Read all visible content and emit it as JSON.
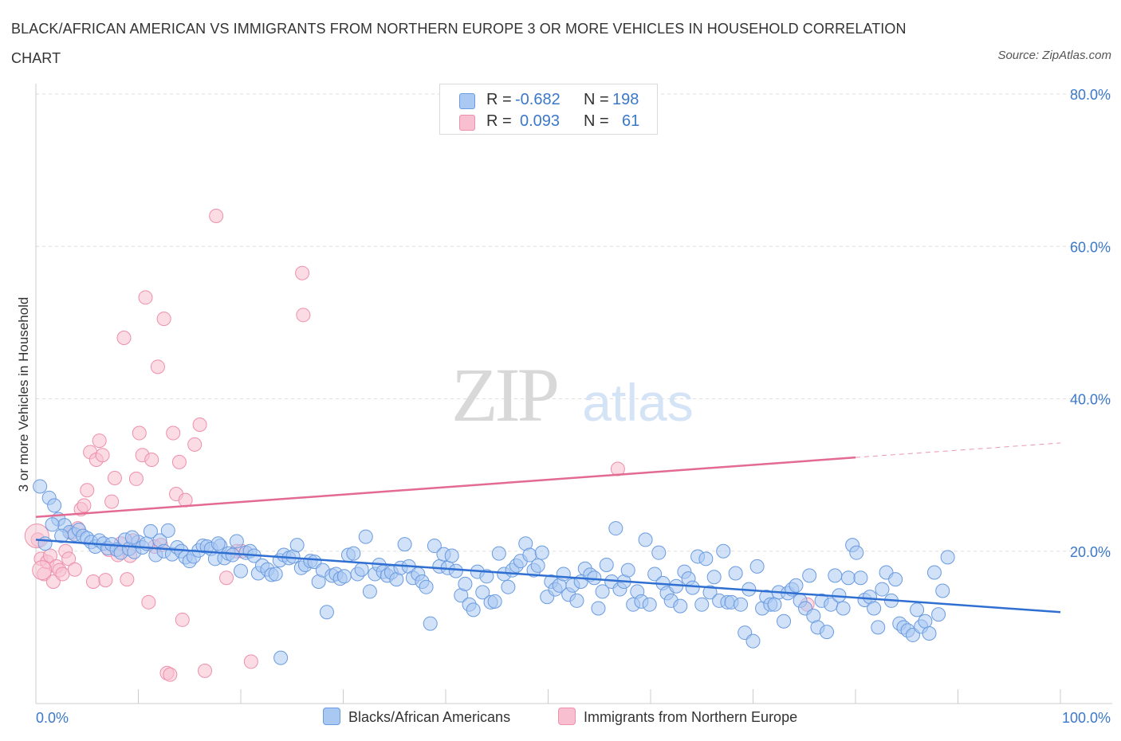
{
  "title": "BLACK/AFRICAN AMERICAN VS IMMIGRANTS FROM NORTHERN EUROPE 3 OR MORE VEHICLES IN HOUSEHOLD CORRELATION CHART",
  "source": "Source: ZipAtlas.com",
  "watermark": {
    "zip": "ZIP",
    "atlas": "atlas"
  },
  "legend": {
    "rows": [
      {
        "r_label": "R =",
        "r_value": "-0.682",
        "n_label": "N =",
        "n_value": "198",
        "color": "#a9c8f2"
      },
      {
        "r_label": "R =",
        "r_value": "0.093",
        "n_label": "N =",
        "n_value": "61",
        "color": "#f7bfcf"
      }
    ]
  },
  "bottom_legend": {
    "blue": "Blacks/African Americans",
    "pink": "Immigrants from Northern Europe"
  },
  "colors": {
    "blue_fill": "#a9c8f2",
    "blue_stroke": "#6a9be0",
    "blue_line": "#2f6fd1",
    "pink_fill": "#f7bfcf",
    "pink_stroke": "#ee8fab",
    "pink_line": "#e36a92",
    "axis_text": "#3b78c9"
  },
  "chart_data": {
    "type": "scatter",
    "title": "BLACK/AFRICAN AMERICAN VS IMMIGRANTS FROM NORTHERN EUROPE 3 OR MORE VEHICLES IN HOUSEHOLD CORRELATION CHART",
    "xlabel": "",
    "ylabel": "3 or more Vehicles in Household",
    "xlim": [
      0,
      100
    ],
    "ylim": [
      0,
      80
    ],
    "x_tick_labels": [
      "0.0%",
      "100.0%"
    ],
    "y_ticks": [
      20,
      40,
      60,
      80
    ],
    "y_tick_labels": [
      "20.0%",
      "40.0%",
      "60.0%",
      "80.0%"
    ],
    "grid": true,
    "legend_position": "top-center",
    "series": [
      {
        "name": "Blacks/African Americans",
        "r": -0.682,
        "n": 198,
        "trend": {
          "x": [
            0,
            100
          ],
          "y": [
            21.5,
            12.0
          ]
        },
        "points": [
          [
            0.4,
            28.5
          ],
          [
            1.3,
            27.0
          ],
          [
            1.8,
            26.0
          ],
          [
            2.2,
            24.2
          ],
          [
            2.8,
            23.4
          ],
          [
            3.3,
            22.5
          ],
          [
            3.8,
            22.2
          ],
          [
            4.2,
            22.8
          ],
          [
            4.6,
            22.0
          ],
          [
            5.0,
            21.7
          ],
          [
            5.4,
            21.2
          ],
          [
            5.8,
            20.6
          ],
          [
            6.2,
            21.4
          ],
          [
            6.6,
            21.0
          ],
          [
            7.0,
            20.4
          ],
          [
            7.4,
            20.9
          ],
          [
            7.9,
            20.2
          ],
          [
            8.3,
            19.8
          ],
          [
            8.7,
            21.5
          ],
          [
            9.1,
            20.3
          ],
          [
            9.6,
            19.9
          ],
          [
            10.0,
            21.2
          ],
          [
            10.4,
            20.5
          ],
          [
            10.8,
            21.0
          ],
          [
            11.2,
            22.6
          ],
          [
            11.7,
            19.5
          ],
          [
            12.1,
            21.4
          ],
          [
            12.5,
            20.0
          ],
          [
            12.9,
            22.7
          ],
          [
            13.3,
            19.6
          ],
          [
            13.8,
            20.5
          ],
          [
            14.2,
            20.0
          ],
          [
            14.6,
            19.2
          ],
          [
            15.0,
            18.7
          ],
          [
            15.4,
            19.3
          ],
          [
            15.9,
            20.1
          ],
          [
            16.3,
            20.7
          ],
          [
            16.7,
            20.6
          ],
          [
            17.1,
            20.3
          ],
          [
            17.5,
            19.0
          ],
          [
            18.0,
            20.7
          ],
          [
            18.4,
            19.1
          ],
          [
            18.8,
            19.7
          ],
          [
            19.2,
            19.5
          ],
          [
            19.6,
            21.3
          ],
          [
            20.0,
            17.4
          ],
          [
            20.5,
            19.8
          ],
          [
            20.9,
            20.0
          ],
          [
            21.3,
            19.4
          ],
          [
            21.7,
            17.1
          ],
          [
            22.1,
            18.1
          ],
          [
            22.6,
            17.6
          ],
          [
            23.0,
            16.9
          ],
          [
            23.4,
            17.0
          ],
          [
            23.8,
            18.8
          ],
          [
            24.2,
            19.5
          ],
          [
            24.7,
            19.1
          ],
          [
            25.1,
            19.3
          ],
          [
            25.5,
            20.8
          ],
          [
            25.9,
            17.8
          ],
          [
            26.3,
            18.2
          ],
          [
            26.8,
            18.7
          ],
          [
            27.2,
            18.6
          ],
          [
            27.6,
            16.0
          ],
          [
            28.0,
            17.5
          ],
          [
            28.4,
            12.0
          ],
          [
            28.9,
            16.8
          ],
          [
            29.3,
            17.0
          ],
          [
            29.7,
            16.4
          ],
          [
            30.1,
            16.7
          ],
          [
            30.5,
            19.5
          ],
          [
            31.0,
            19.7
          ],
          [
            31.4,
            17.0
          ],
          [
            31.8,
            17.6
          ],
          [
            32.2,
            21.9
          ],
          [
            32.6,
            14.7
          ],
          [
            33.1,
            17.0
          ],
          [
            33.5,
            18.2
          ],
          [
            33.9,
            17.3
          ],
          [
            34.3,
            16.8
          ],
          [
            34.7,
            17.2
          ],
          [
            35.2,
            16.3
          ],
          [
            35.6,
            17.8
          ],
          [
            36.0,
            20.9
          ],
          [
            36.4,
            18.0
          ],
          [
            36.8,
            16.5
          ],
          [
            37.3,
            17.0
          ],
          [
            37.7,
            16.0
          ],
          [
            38.1,
            15.3
          ],
          [
            38.5,
            10.5
          ],
          [
            38.9,
            20.7
          ],
          [
            39.4,
            18.0
          ],
          [
            39.8,
            19.6
          ],
          [
            40.2,
            17.8
          ],
          [
            40.6,
            19.4
          ],
          [
            41.0,
            17.4
          ],
          [
            41.5,
            14.2
          ],
          [
            41.9,
            15.7
          ],
          [
            42.3,
            13.0
          ],
          [
            42.7,
            12.3
          ],
          [
            43.1,
            17.3
          ],
          [
            43.6,
            14.6
          ],
          [
            44.0,
            16.7
          ],
          [
            44.4,
            13.3
          ],
          [
            44.8,
            13.4
          ],
          [
            45.2,
            19.7
          ],
          [
            45.7,
            17.0
          ],
          [
            46.1,
            15.3
          ],
          [
            46.5,
            17.5
          ],
          [
            46.9,
            18.1
          ],
          [
            47.3,
            18.7
          ],
          [
            47.8,
            21.0
          ],
          [
            48.2,
            19.5
          ],
          [
            48.6,
            17.5
          ],
          [
            49.0,
            18.1
          ],
          [
            49.4,
            19.8
          ],
          [
            49.9,
            14.0
          ],
          [
            50.3,
            16.0
          ],
          [
            50.7,
            15.0
          ],
          [
            51.1,
            15.5
          ],
          [
            51.5,
            17.0
          ],
          [
            52.0,
            14.3
          ],
          [
            52.4,
            15.5
          ],
          [
            52.8,
            13.5
          ],
          [
            53.2,
            16.0
          ],
          [
            53.6,
            17.7
          ],
          [
            54.1,
            16.9
          ],
          [
            54.5,
            16.5
          ],
          [
            54.9,
            12.5
          ],
          [
            55.3,
            14.7
          ],
          [
            55.7,
            18.2
          ],
          [
            56.2,
            16.0
          ],
          [
            56.6,
            23.0
          ],
          [
            57.0,
            15.0
          ],
          [
            57.4,
            16.0
          ],
          [
            57.8,
            17.5
          ],
          [
            58.3,
            13.0
          ],
          [
            58.7,
            14.7
          ],
          [
            59.1,
            13.4
          ],
          [
            59.5,
            21.5
          ],
          [
            59.9,
            13.0
          ],
          [
            60.4,
            17.0
          ],
          [
            60.8,
            19.8
          ],
          [
            61.2,
            15.8
          ],
          [
            61.6,
            14.5
          ],
          [
            62.0,
            13.5
          ],
          [
            62.5,
            15.4
          ],
          [
            62.9,
            12.8
          ],
          [
            63.3,
            17.3
          ],
          [
            63.7,
            16.4
          ],
          [
            64.1,
            15.2
          ],
          [
            64.6,
            19.3
          ],
          [
            65.0,
            13.0
          ],
          [
            65.4,
            19.0
          ],
          [
            65.8,
            14.6
          ],
          [
            66.2,
            16.6
          ],
          [
            66.7,
            13.5
          ],
          [
            67.1,
            20.0
          ],
          [
            67.5,
            13.3
          ],
          [
            67.9,
            13.3
          ],
          [
            68.3,
            17.1
          ],
          [
            68.8,
            13.0
          ],
          [
            69.2,
            9.3
          ],
          [
            69.6,
            15.0
          ],
          [
            70.0,
            8.2
          ],
          [
            70.4,
            18.0
          ],
          [
            70.9,
            12.5
          ],
          [
            71.3,
            14.0
          ],
          [
            71.7,
            13.0
          ],
          [
            72.1,
            13.0
          ],
          [
            72.5,
            14.6
          ],
          [
            73.0,
            10.8
          ],
          [
            73.4,
            14.5
          ],
          [
            73.8,
            15.0
          ],
          [
            74.2,
            15.5
          ],
          [
            74.6,
            13.5
          ],
          [
            75.1,
            12.5
          ],
          [
            75.5,
            16.8
          ],
          [
            75.9,
            11.5
          ],
          [
            76.3,
            10.0
          ],
          [
            76.7,
            13.5
          ],
          [
            77.2,
            9.4
          ],
          [
            77.6,
            13.0
          ],
          [
            78.0,
            16.8
          ],
          [
            78.4,
            14.2
          ],
          [
            78.8,
            12.5
          ],
          [
            79.3,
            16.5
          ],
          [
            79.7,
            20.8
          ],
          [
            80.1,
            19.8
          ],
          [
            80.5,
            16.5
          ],
          [
            80.9,
            13.6
          ],
          [
            81.4,
            14.0
          ],
          [
            81.8,
            12.5
          ],
          [
            82.2,
            10.0
          ],
          [
            82.6,
            15.0
          ],
          [
            83.0,
            17.2
          ],
          [
            83.5,
            13.5
          ],
          [
            83.9,
            16.3
          ],
          [
            84.3,
            10.5
          ],
          [
            84.7,
            10.0
          ],
          [
            85.1,
            9.6
          ],
          [
            85.6,
            9.0
          ],
          [
            86.0,
            12.3
          ],
          [
            86.4,
            10.1
          ],
          [
            86.8,
            10.8
          ],
          [
            87.2,
            9.2
          ],
          [
            87.7,
            17.2
          ],
          [
            88.1,
            11.7
          ],
          [
            88.5,
            14.8
          ],
          [
            89.0,
            19.2
          ],
          [
            0.9,
            21.0
          ],
          [
            1.6,
            23.5
          ],
          [
            2.5,
            22.0
          ],
          [
            9.4,
            21.8
          ],
          [
            17.8,
            21.0
          ],
          [
            23.9,
            6.0
          ]
        ]
      },
      {
        "name": "Immigrants from Northern Europe",
        "r": 0.093,
        "n": 61,
        "trend": {
          "x": [
            0,
            80
          ],
          "y": [
            24.5,
            32.3
          ],
          "dashed_x": [
            80,
            100
          ],
          "dashed_y": [
            32.3,
            34.2
          ]
        },
        "points": [
          [
            0.2,
            21.5
          ],
          [
            0.5,
            19.0
          ],
          [
            0.8,
            17.0
          ],
          [
            1.1,
            18.6
          ],
          [
            1.4,
            19.4
          ],
          [
            1.7,
            16.0
          ],
          [
            2.0,
            18.0
          ],
          [
            2.3,
            17.5
          ],
          [
            2.6,
            17.0
          ],
          [
            2.9,
            20.0
          ],
          [
            3.2,
            19.0
          ],
          [
            3.5,
            22.4
          ],
          [
            3.8,
            17.6
          ],
          [
            4.1,
            23.0
          ],
          [
            4.4,
            25.5
          ],
          [
            4.7,
            26.0
          ],
          [
            5.0,
            28.0
          ],
          [
            5.3,
            33.0
          ],
          [
            5.6,
            16.0
          ],
          [
            5.9,
            32.0
          ],
          [
            6.2,
            34.5
          ],
          [
            6.5,
            32.6
          ],
          [
            6.8,
            16.2
          ],
          [
            7.1,
            20.2
          ],
          [
            7.4,
            26.5
          ],
          [
            7.7,
            29.6
          ],
          [
            8.0,
            19.5
          ],
          [
            8.3,
            21.0
          ],
          [
            8.6,
            48.0
          ],
          [
            8.9,
            16.3
          ],
          [
            9.2,
            19.4
          ],
          [
            9.5,
            21.4
          ],
          [
            9.8,
            29.5
          ],
          [
            10.1,
            35.5
          ],
          [
            10.4,
            32.6
          ],
          [
            10.7,
            53.3
          ],
          [
            11.0,
            13.3
          ],
          [
            11.3,
            32.0
          ],
          [
            11.6,
            20.6
          ],
          [
            11.9,
            44.2
          ],
          [
            12.2,
            20.8
          ],
          [
            12.5,
            50.5
          ],
          [
            12.8,
            4.0
          ],
          [
            13.1,
            3.8
          ],
          [
            13.4,
            35.5
          ],
          [
            13.7,
            27.5
          ],
          [
            14.0,
            31.7
          ],
          [
            14.3,
            11.0
          ],
          [
            14.6,
            26.7
          ],
          [
            15.5,
            34.0
          ],
          [
            16.0,
            36.6
          ],
          [
            16.5,
            4.3
          ],
          [
            17.6,
            64.0
          ],
          [
            18.6,
            16.5
          ],
          [
            19.6,
            20.0
          ],
          [
            20.1,
            20.0
          ],
          [
            21.0,
            5.5
          ],
          [
            26.0,
            56.5
          ],
          [
            26.1,
            51.0
          ],
          [
            56.8,
            30.8
          ],
          [
            75.3,
            13.0
          ]
        ]
      }
    ]
  }
}
